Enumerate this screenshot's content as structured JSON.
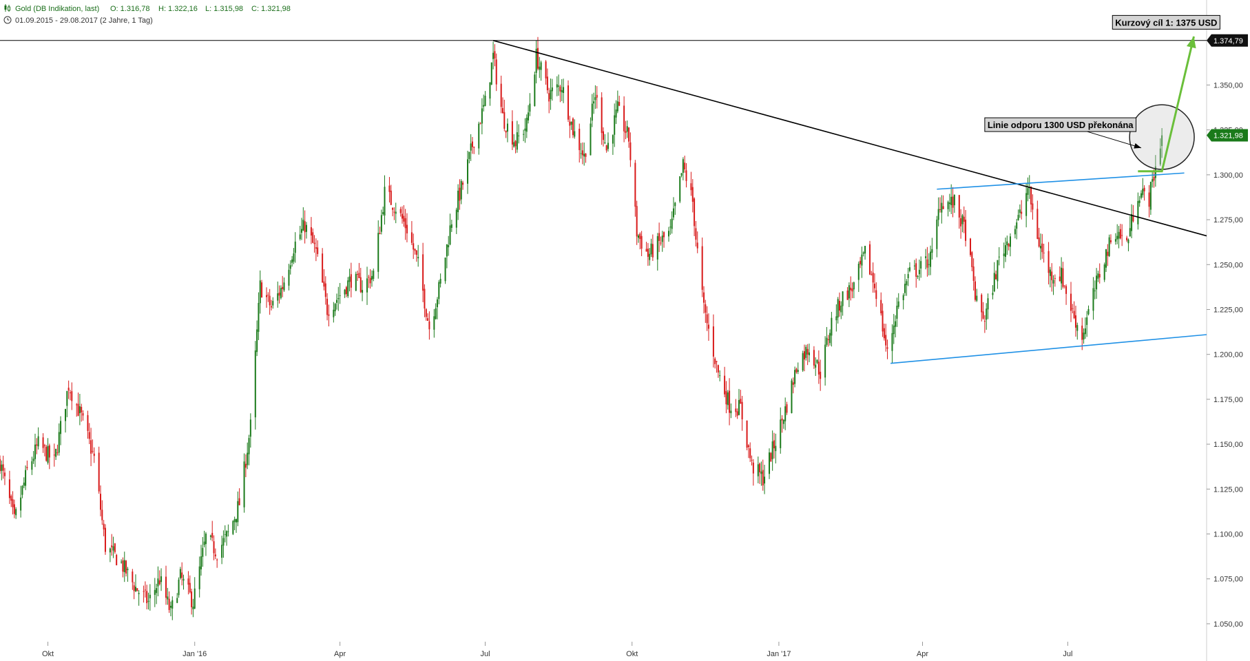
{
  "header": {
    "instrument_line": "Gold (DB Indikation, last)",
    "ohlc": {
      "o": "O: 1.316,78",
      "h": "H: 1.322,16",
      "l": "L: 1.315,98",
      "c": "C: 1.321,98"
    },
    "range_line": "01.09.2015 - 29.08.2017   (2 Jahre, 1 Tag)",
    "candle_icon": "candlestick-icon",
    "clock_icon": "clock-icon"
  },
  "colors": {
    "up": "#1a7a1a",
    "down": "#d81818",
    "trend": "#000000",
    "channel": "#1e90e6",
    "arrow": "#6abf3a",
    "last_badge": "#1a7a1a",
    "header_green": "#1a6e1a"
  },
  "chart_data": {
    "type": "candlestick",
    "ylim": [
      1040,
      1382
    ],
    "y_ticks": [
      1050,
      1075,
      1100,
      1125,
      1150,
      1175,
      1200,
      1225,
      1250,
      1275,
      1300,
      1325,
      1350
    ],
    "y_tick_labels": [
      "1.050,00",
      "1.075,00",
      "1.100,00",
      "1.125,00",
      "1.150,00",
      "1.175,00",
      "1.200,00",
      "1.225,00",
      "1.250,00",
      "1.275,00",
      "1.300,00",
      "1.325,00",
      "1.350,00"
    ],
    "x_range": [
      "2015-09-01",
      "2017-09-26"
    ],
    "x_ticks": [
      {
        "label": "Okt",
        "date": "2015-10-01"
      },
      {
        "label": "Jan '16",
        "date": "2016-01-01"
      },
      {
        "label": "Apr",
        "date": "2016-04-01"
      },
      {
        "label": "Jul",
        "date": "2016-07-01"
      },
      {
        "label": "Okt",
        "date": "2016-10-01"
      },
      {
        "label": "Jan '17",
        "date": "2017-01-01"
      },
      {
        "label": "Apr",
        "date": "2017-04-01"
      },
      {
        "label": "Jul",
        "date": "2017-07-01"
      }
    ],
    "price_path": [
      [
        "2015-09-01",
        1140
      ],
      [
        "2015-09-10",
        1107
      ],
      [
        "2015-09-18",
        1135
      ],
      [
        "2015-09-25",
        1150
      ],
      [
        "2015-10-05",
        1140
      ],
      [
        "2015-10-14",
        1183
      ],
      [
        "2015-10-22",
        1165
      ],
      [
        "2015-10-30",
        1142
      ],
      [
        "2015-11-06",
        1093
      ],
      [
        "2015-11-15",
        1085
      ],
      [
        "2015-11-25",
        1070
      ],
      [
        "2015-12-03",
        1062
      ],
      [
        "2015-12-10",
        1075
      ],
      [
        "2015-12-17",
        1056
      ],
      [
        "2015-12-23",
        1076
      ],
      [
        "2015-12-31",
        1062
      ],
      [
        "2016-01-08",
        1098
      ],
      [
        "2016-01-15",
        1090
      ],
      [
        "2016-01-22",
        1100
      ],
      [
        "2016-01-29",
        1117
      ],
      [
        "2016-02-05",
        1160
      ],
      [
        "2016-02-11",
        1238
      ],
      [
        "2016-02-18",
        1226
      ],
      [
        "2016-02-25",
        1238
      ],
      [
        "2016-03-03",
        1260
      ],
      [
        "2016-03-10",
        1272
      ],
      [
        "2016-03-17",
        1257
      ],
      [
        "2016-03-24",
        1225
      ],
      [
        "2016-03-31",
        1232
      ],
      [
        "2016-04-08",
        1242
      ],
      [
        "2016-04-15",
        1238
      ],
      [
        "2016-04-22",
        1245
      ],
      [
        "2016-04-29",
        1290
      ],
      [
        "2016-05-06",
        1282
      ],
      [
        "2016-05-13",
        1270
      ],
      [
        "2016-05-20",
        1250
      ],
      [
        "2016-05-27",
        1215
      ],
      [
        "2016-06-03",
        1240
      ],
      [
        "2016-06-10",
        1275
      ],
      [
        "2016-06-17",
        1295
      ],
      [
        "2016-06-24",
        1320
      ],
      [
        "2016-07-01",
        1340
      ],
      [
        "2016-07-06",
        1366
      ],
      [
        "2016-07-12",
        1332
      ],
      [
        "2016-07-20",
        1318
      ],
      [
        "2016-07-27",
        1328
      ],
      [
        "2016-08-02",
        1366
      ],
      [
        "2016-08-10",
        1345
      ],
      [
        "2016-08-18",
        1350
      ],
      [
        "2016-08-25",
        1325
      ],
      [
        "2016-09-01",
        1310
      ],
      [
        "2016-09-08",
        1345
      ],
      [
        "2016-09-15",
        1314
      ],
      [
        "2016-09-22",
        1336
      ],
      [
        "2016-09-29",
        1320
      ],
      [
        "2016-10-04",
        1268
      ],
      [
        "2016-10-11",
        1255
      ],
      [
        "2016-10-18",
        1262
      ],
      [
        "2016-10-25",
        1268
      ],
      [
        "2016-11-02",
        1305
      ],
      [
        "2016-11-08",
        1285
      ],
      [
        "2016-11-10",
        1265
      ],
      [
        "2016-11-15",
        1225
      ],
      [
        "2016-11-24",
        1190
      ],
      [
        "2016-12-01",
        1172
      ],
      [
        "2016-12-08",
        1170
      ],
      [
        "2016-12-15",
        1138
      ],
      [
        "2016-12-22",
        1131
      ],
      [
        "2016-12-30",
        1152
      ],
      [
        "2017-01-06",
        1172
      ],
      [
        "2017-01-13",
        1196
      ],
      [
        "2017-01-20",
        1204
      ],
      [
        "2017-01-27",
        1190
      ],
      [
        "2017-02-03",
        1218
      ],
      [
        "2017-02-10",
        1232
      ],
      [
        "2017-02-17",
        1238
      ],
      [
        "2017-02-24",
        1256
      ],
      [
        "2017-03-03",
        1235
      ],
      [
        "2017-03-10",
        1200
      ],
      [
        "2017-03-16",
        1226
      ],
      [
        "2017-03-24",
        1245
      ],
      [
        "2017-03-31",
        1248
      ],
      [
        "2017-04-07",
        1255
      ],
      [
        "2017-04-12",
        1285
      ],
      [
        "2017-04-21",
        1284
      ],
      [
        "2017-04-28",
        1268
      ],
      [
        "2017-05-05",
        1228
      ],
      [
        "2017-05-10",
        1220
      ],
      [
        "2017-05-19",
        1253
      ],
      [
        "2017-05-26",
        1267
      ],
      [
        "2017-06-02",
        1279
      ],
      [
        "2017-06-06",
        1293
      ],
      [
        "2017-06-13",
        1262
      ],
      [
        "2017-06-20",
        1245
      ],
      [
        "2017-06-27",
        1244
      ],
      [
        "2017-07-04",
        1223
      ],
      [
        "2017-07-10",
        1210
      ],
      [
        "2017-07-17",
        1233
      ],
      [
        "2017-07-24",
        1254
      ],
      [
        "2017-07-31",
        1269
      ],
      [
        "2017-08-07",
        1262
      ],
      [
        "2017-08-14",
        1290
      ],
      [
        "2017-08-21",
        1287
      ],
      [
        "2017-08-29",
        1321.98
      ]
    ],
    "right_axis_badges": [
      {
        "label": "1.374,79",
        "value": 1374.79,
        "style": "dark"
      },
      {
        "label": "1.321,98",
        "value": 1321.98,
        "style": "green"
      }
    ],
    "lines": {
      "horizontal_high": {
        "y": 1374.79
      },
      "resistance_trend": [
        [
          "2016-07-06",
          1374.79
        ],
        [
          "2017-09-26",
          1266
        ]
      ],
      "channel_upper": [
        [
          "2017-04-10",
          1292
        ],
        [
          "2017-09-12",
          1301
        ]
      ],
      "channel_lower": [
        [
          "2017-03-12",
          1195
        ],
        [
          "2017-09-26",
          1211
        ]
      ],
      "breakout_green": [
        [
          "2017-08-14",
          1302
        ],
        [
          "2017-08-29",
          1302
        ],
        [
          "2017-09-18",
          1377
        ]
      ],
      "pointer_arrow": [
        [
          "2017-07-06",
          1326
        ],
        [
          "2017-08-16",
          1315
        ]
      ],
      "circle_center": [
        "2017-08-29",
        1321
      ],
      "circle_radius_value": 18
    },
    "annotations": [
      {
        "id": "target",
        "text": "Kurzový cíl 1: 1375 USD",
        "date": "2017-07-29",
        "value": 1383
      },
      {
        "id": "resistance",
        "text": "Linie odporu  1300 USD překonána",
        "date": "2017-05-10",
        "value": 1326
      }
    ]
  }
}
